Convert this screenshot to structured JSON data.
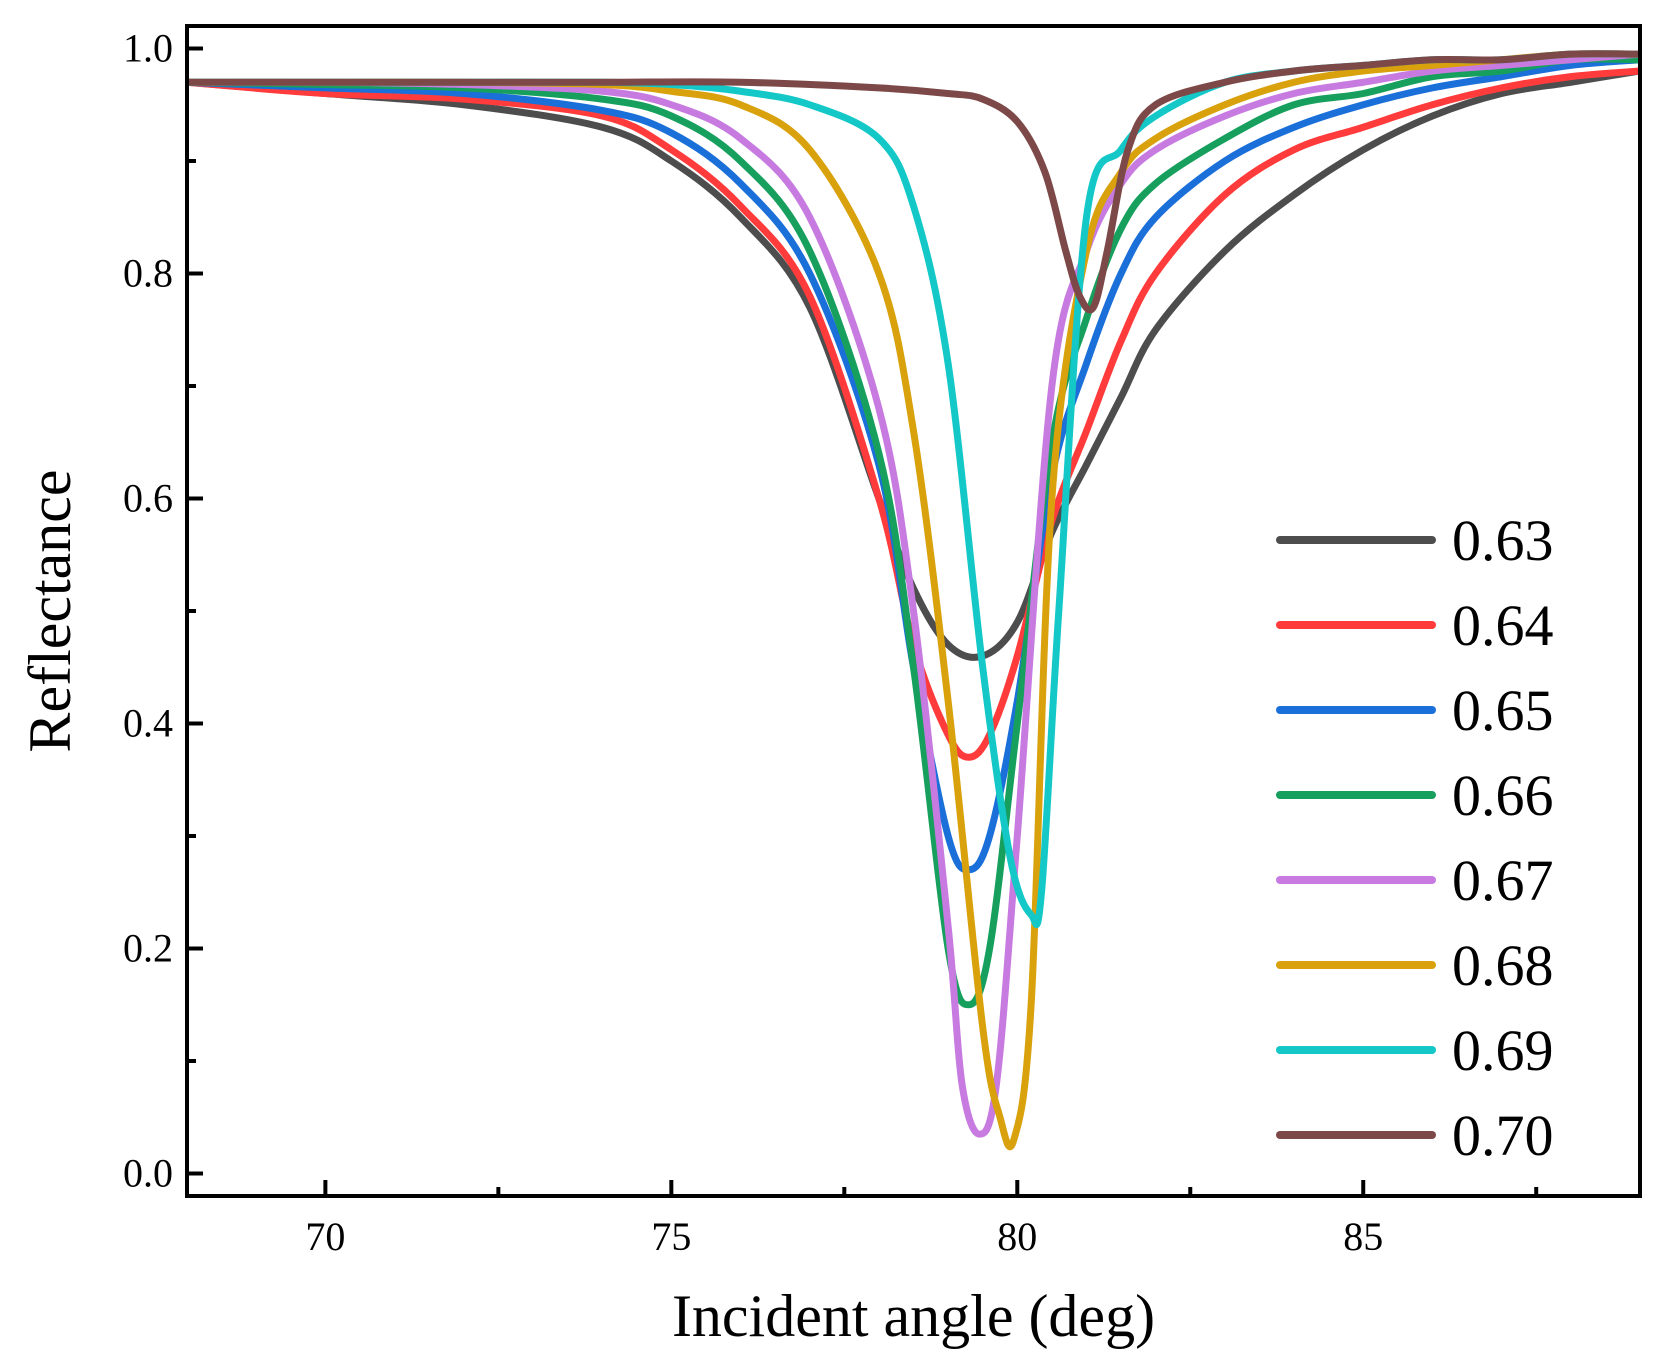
{
  "chart_data": {
    "type": "line",
    "title": "",
    "xlabel": "Incident angle (deg)",
    "ylabel": "Reflectance",
    "xlim": [
      68,
      89
    ],
    "ylim": [
      -0.02,
      1.02
    ],
    "xticks": [
      70,
      75,
      80,
      85
    ],
    "xtick_labels": [
      "70",
      "75",
      "80",
      "85"
    ],
    "yticks": [
      0.0,
      0.2,
      0.4,
      0.6,
      0.8,
      1.0
    ],
    "ytick_labels": [
      "0.0",
      "0.2",
      "0.4",
      "0.6",
      "0.8",
      "1.0"
    ],
    "grid": false,
    "legend_position": "right",
    "series": [
      {
        "name": "0.63",
        "color": "#4d4d4d",
        "x": [
          68,
          70,
          72,
          74,
          75,
          76,
          77,
          78,
          78.5,
          79,
          79.5,
          80,
          80.5,
          81,
          81.5,
          82,
          83,
          84,
          85,
          86,
          87,
          88,
          89
        ],
        "y": [
          0.97,
          0.96,
          0.95,
          0.93,
          0.9,
          0.85,
          0.77,
          0.6,
          0.52,
          0.47,
          0.46,
          0.49,
          0.57,
          0.63,
          0.69,
          0.75,
          0.82,
          0.87,
          0.91,
          0.94,
          0.96,
          0.97,
          0.98
        ]
      },
      {
        "name": "0.64",
        "color": "#ff3b3b",
        "x": [
          68,
          70,
          72,
          74,
          75,
          76,
          77,
          78,
          78.5,
          79,
          79.3,
          79.6,
          80,
          80.5,
          81,
          81.5,
          82,
          83,
          84,
          85,
          86,
          87,
          88,
          89
        ],
        "y": [
          0.97,
          0.96,
          0.955,
          0.94,
          0.91,
          0.86,
          0.78,
          0.6,
          0.47,
          0.39,
          0.37,
          0.39,
          0.46,
          0.58,
          0.66,
          0.74,
          0.8,
          0.87,
          0.91,
          0.93,
          0.95,
          0.965,
          0.975,
          0.98
        ]
      },
      {
        "name": "0.65",
        "color": "#1a6fd9",
        "x": [
          68,
          70,
          72,
          74,
          75,
          76,
          77,
          78,
          78.5,
          79,
          79.3,
          79.6,
          80,
          80.5,
          81,
          81.5,
          82,
          83,
          84,
          85,
          86,
          87,
          88,
          89
        ],
        "y": [
          0.97,
          0.965,
          0.96,
          0.945,
          0.925,
          0.88,
          0.8,
          0.63,
          0.45,
          0.3,
          0.27,
          0.3,
          0.42,
          0.62,
          0.72,
          0.8,
          0.85,
          0.9,
          0.93,
          0.95,
          0.965,
          0.975,
          0.985,
          0.99
        ]
      },
      {
        "name": "0.66",
        "color": "#17a05d",
        "x": [
          68,
          70,
          72,
          74,
          75,
          76,
          77,
          78,
          78.5,
          79,
          79.3,
          79.6,
          80,
          80.5,
          81,
          81.5,
          82,
          83,
          84,
          85,
          86,
          87,
          88,
          89
        ],
        "y": [
          0.97,
          0.968,
          0.965,
          0.955,
          0.94,
          0.9,
          0.82,
          0.64,
          0.45,
          0.2,
          0.15,
          0.2,
          0.4,
          0.65,
          0.76,
          0.84,
          0.88,
          0.92,
          0.95,
          0.96,
          0.975,
          0.98,
          0.99,
          0.99
        ]
      },
      {
        "name": "0.67",
        "color": "#c77be0",
        "x": [
          68,
          70,
          72,
          74,
          75,
          76,
          77,
          78,
          78.5,
          79,
          79.2,
          79.45,
          79.7,
          80,
          80.5,
          81,
          81.5,
          82,
          83,
          84,
          85,
          86,
          87,
          88,
          89
        ],
        "y": [
          0.97,
          0.97,
          0.968,
          0.962,
          0.95,
          0.92,
          0.85,
          0.68,
          0.5,
          0.22,
          0.08,
          0.035,
          0.08,
          0.3,
          0.7,
          0.82,
          0.88,
          0.91,
          0.94,
          0.96,
          0.97,
          0.98,
          0.985,
          0.99,
          0.995
        ]
      },
      {
        "name": "0.68",
        "color": "#d9a10c",
        "x": [
          68,
          70,
          72,
          74,
          75,
          76,
          77,
          78,
          78.5,
          79,
          79.5,
          79.75,
          79.95,
          80.2,
          80.5,
          81,
          81.5,
          82,
          83,
          84,
          85,
          86,
          87,
          88,
          89
        ],
        "y": [
          0.97,
          0.97,
          0.97,
          0.968,
          0.962,
          0.95,
          0.91,
          0.8,
          0.66,
          0.42,
          0.13,
          0.05,
          0.03,
          0.15,
          0.6,
          0.82,
          0.89,
          0.92,
          0.95,
          0.97,
          0.98,
          0.985,
          0.99,
          0.995,
          0.995
        ]
      },
      {
        "name": "0.69",
        "color": "#14c8c8",
        "x": [
          68,
          70,
          72,
          74,
          75,
          76,
          77,
          78,
          78.5,
          79,
          79.5,
          79.9,
          80.2,
          80.35,
          80.6,
          81,
          81.5,
          82,
          83,
          84,
          85,
          86,
          87,
          88,
          89
        ],
        "y": [
          0.97,
          0.97,
          0.97,
          0.97,
          0.968,
          0.962,
          0.95,
          0.92,
          0.86,
          0.72,
          0.45,
          0.28,
          0.23,
          0.25,
          0.5,
          0.85,
          0.91,
          0.94,
          0.97,
          0.98,
          0.985,
          0.99,
          0.99,
          0.995,
          0.995
        ]
      },
      {
        "name": "0.70",
        "color": "#7d4848",
        "x": [
          68,
          70,
          72,
          74,
          76,
          78,
          79,
          79.5,
          80,
          80.4,
          80.7,
          80.9,
          81.1,
          81.3,
          81.6,
          82,
          83,
          84,
          85,
          86,
          87,
          88,
          89
        ],
        "y": [
          0.97,
          0.97,
          0.97,
          0.97,
          0.97,
          0.965,
          0.96,
          0.955,
          0.935,
          0.89,
          0.82,
          0.78,
          0.77,
          0.82,
          0.91,
          0.95,
          0.97,
          0.98,
          0.985,
          0.99,
          0.99,
          0.995,
          0.995
        ]
      }
    ]
  }
}
